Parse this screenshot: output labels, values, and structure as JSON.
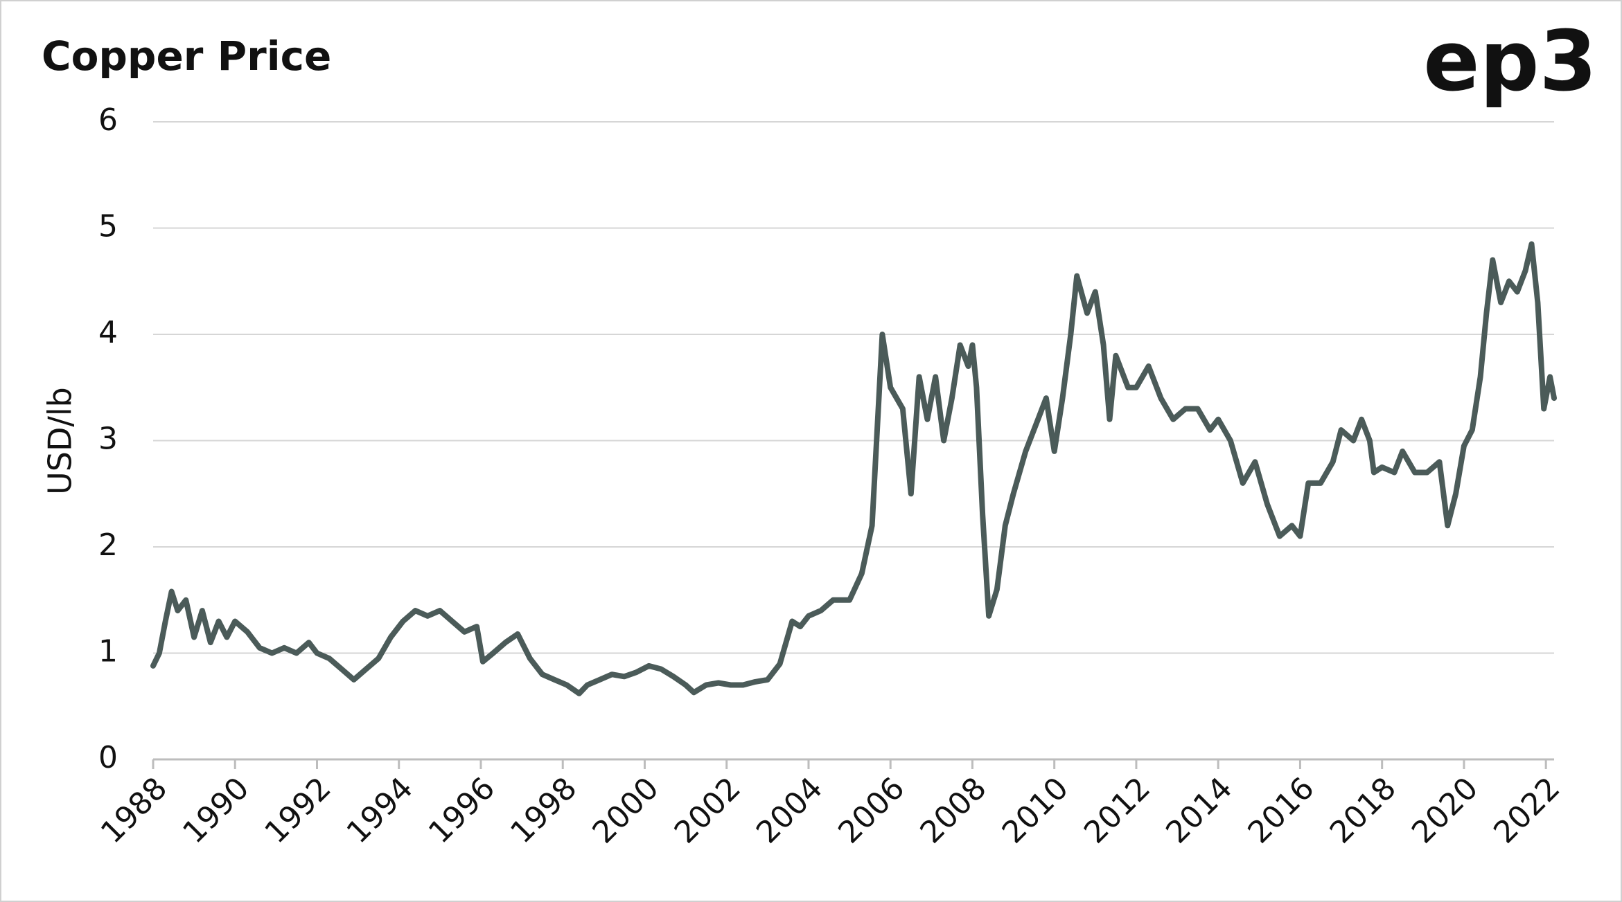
{
  "chart_data": {
    "type": "line",
    "title": "Copper Price",
    "logo": "ep3",
    "y_label": "USD/lb",
    "color": "#4b5b59",
    "grid": true,
    "xlim": [
      1988,
      2022.2
    ],
    "xticks": [
      1988,
      1990,
      1992,
      1994,
      1996,
      1998,
      2000,
      2002,
      2004,
      2006,
      2008,
      2010,
      2012,
      2014,
      2016,
      2018,
      2020,
      2022
    ],
    "ylim": [
      0,
      6
    ],
    "yticks": [
      0,
      1,
      2,
      3,
      4,
      5,
      6
    ],
    "x": [
      1988.0,
      1988.15,
      1988.3,
      1988.45,
      1988.6,
      1988.8,
      1989.0,
      1989.2,
      1989.4,
      1989.6,
      1989.8,
      1990.0,
      1990.3,
      1990.6,
      1990.9,
      1991.2,
      1991.5,
      1991.8,
      1992.0,
      1992.3,
      1992.6,
      1992.9,
      1993.2,
      1993.5,
      1993.8,
      1994.1,
      1994.4,
      1994.7,
      1995.0,
      1995.3,
      1995.6,
      1995.9,
      1996.05,
      1996.3,
      1996.6,
      1996.9,
      1997.2,
      1997.5,
      1997.8,
      1998.1,
      1998.4,
      1998.6,
      1998.9,
      1999.2,
      1999.5,
      1999.8,
      2000.1,
      2000.4,
      2000.7,
      2001.0,
      2001.2,
      2001.5,
      2001.8,
      2002.1,
      2002.4,
      2002.7,
      2003.0,
      2003.3,
      2003.6,
      2003.8,
      2004.0,
      2004.3,
      2004.6,
      2005.0,
      2005.3,
      2005.55,
      2005.8,
      2006.0,
      2006.3,
      2006.5,
      2006.7,
      2006.9,
      2007.1,
      2007.3,
      2007.5,
      2007.7,
      2007.9,
      2008.0,
      2008.1,
      2008.25,
      2008.4,
      2008.6,
      2008.8,
      2009.0,
      2009.3,
      2009.6,
      2009.8,
      2010.0,
      2010.2,
      2010.4,
      2010.55,
      2010.8,
      2011.0,
      2011.2,
      2011.35,
      2011.5,
      2011.8,
      2012.0,
      2012.3,
      2012.6,
      2012.9,
      2013.2,
      2013.5,
      2013.8,
      2014.0,
      2014.3,
      2014.6,
      2014.9,
      2015.2,
      2015.5,
      2015.8,
      2016.0,
      2016.2,
      2016.5,
      2016.8,
      2017.0,
      2017.3,
      2017.5,
      2017.7,
      2017.8,
      2018.0,
      2018.3,
      2018.5,
      2018.8,
      2019.1,
      2019.4,
      2019.6,
      2019.8,
      2020.0,
      2020.2,
      2020.4,
      2020.55,
      2020.7,
      2020.9,
      2021.1,
      2021.3,
      2021.5,
      2021.65,
      2021.8,
      2021.95,
      2022.1,
      2022.2
    ],
    "values": [
      0.88,
      1.0,
      1.3,
      1.58,
      1.4,
      1.5,
      1.15,
      1.4,
      1.1,
      1.3,
      1.15,
      1.3,
      1.2,
      1.05,
      1.0,
      1.05,
      1.0,
      1.1,
      1.0,
      0.95,
      0.85,
      0.75,
      0.85,
      0.95,
      1.15,
      1.3,
      1.4,
      1.35,
      1.4,
      1.3,
      1.2,
      1.25,
      0.92,
      1.0,
      1.1,
      1.18,
      0.95,
      0.8,
      0.75,
      0.7,
      0.62,
      0.7,
      0.75,
      0.8,
      0.78,
      0.82,
      0.88,
      0.85,
      0.78,
      0.7,
      0.63,
      0.7,
      0.72,
      0.7,
      0.7,
      0.73,
      0.75,
      0.9,
      1.3,
      1.25,
      1.35,
      1.4,
      1.5,
      1.5,
      1.75,
      2.2,
      4.0,
      3.5,
      3.3,
      2.5,
      3.6,
      3.2,
      3.6,
      3.0,
      3.4,
      3.9,
      3.7,
      3.9,
      3.5,
      2.3,
      1.35,
      1.6,
      2.2,
      2.5,
      2.9,
      3.2,
      3.4,
      2.9,
      3.4,
      4.0,
      4.55,
      4.2,
      4.4,
      3.9,
      3.2,
      3.8,
      3.5,
      3.5,
      3.7,
      3.4,
      3.2,
      3.3,
      3.3,
      3.1,
      3.2,
      3.0,
      2.6,
      2.8,
      2.4,
      2.1,
      2.2,
      2.1,
      2.6,
      2.6,
      2.8,
      3.1,
      3.0,
      3.2,
      3.0,
      2.7,
      2.75,
      2.7,
      2.9,
      2.7,
      2.7,
      2.8,
      2.2,
      2.5,
      2.95,
      3.1,
      3.6,
      4.2,
      4.7,
      4.3,
      4.5,
      4.4,
      4.6,
      4.85,
      4.3,
      3.3,
      3.6,
      3.4
    ]
  }
}
